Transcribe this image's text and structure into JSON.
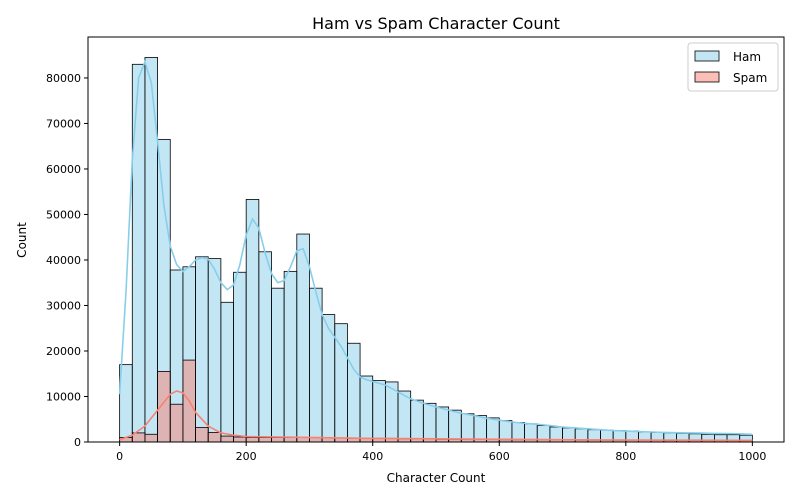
{
  "chart_data": {
    "type": "bar",
    "title": "Ham vs Spam Character Count",
    "xlabel": "Character Count",
    "ylabel": "Count",
    "xlim": [
      -50,
      1050
    ],
    "ylim": [
      0,
      89000
    ],
    "xticks": [
      0,
      200,
      400,
      600,
      800,
      1000
    ],
    "yticks": [
      0,
      10000,
      20000,
      30000,
      40000,
      50000,
      60000,
      70000,
      80000
    ],
    "bin_start": 0,
    "bin_width": 20,
    "grid": false,
    "legend_position": "top-right",
    "series": [
      {
        "name": "Ham",
        "color": "#87CEEB",
        "values": [
          17000,
          83000,
          84500,
          66500,
          37800,
          38500,
          40700,
          40300,
          30700,
          37300,
          53300,
          41800,
          33800,
          37500,
          45700,
          33800,
          28000,
          26000,
          21700,
          14500,
          13500,
          13200,
          11200,
          9200,
          8500,
          7700,
          7000,
          6200,
          5800,
          5300,
          4700,
          4300,
          4000,
          3600,
          3300,
          3100,
          2900,
          2700,
          2600,
          2500,
          2400,
          2200,
          2100,
          2000,
          1900,
          1800,
          1700,
          1600,
          1600,
          1500
        ],
        "kde": [
          [
            0,
            10500
          ],
          [
            10,
            33000
          ],
          [
            20,
            62000
          ],
          [
            30,
            80000
          ],
          [
            40,
            83500
          ],
          [
            50,
            79000
          ],
          [
            60,
            66000
          ],
          [
            70,
            52000
          ],
          [
            80,
            43000
          ],
          [
            90,
            39000
          ],
          [
            100,
            37500
          ],
          [
            110,
            38500
          ],
          [
            120,
            40000
          ],
          [
            130,
            40500
          ],
          [
            140,
            40200
          ],
          [
            150,
            38000
          ],
          [
            160,
            35000
          ],
          [
            170,
            33500
          ],
          [
            180,
            34500
          ],
          [
            190,
            39000
          ],
          [
            200,
            45500
          ],
          [
            210,
            49000
          ],
          [
            220,
            47000
          ],
          [
            230,
            41500
          ],
          [
            240,
            37000
          ],
          [
            250,
            35000
          ],
          [
            260,
            35500
          ],
          [
            270,
            38500
          ],
          [
            280,
            42000
          ],
          [
            290,
            42500
          ],
          [
            300,
            38500
          ],
          [
            310,
            33000
          ],
          [
            320,
            28000
          ],
          [
            330,
            25000
          ],
          [
            340,
            23000
          ],
          [
            350,
            21000
          ],
          [
            360,
            18500
          ],
          [
            370,
            16000
          ],
          [
            380,
            14300
          ],
          [
            390,
            13700
          ],
          [
            400,
            13300
          ],
          [
            420,
            12500
          ],
          [
            440,
            11000
          ],
          [
            460,
            9500
          ],
          [
            480,
            8500
          ],
          [
            500,
            7700
          ],
          [
            520,
            7000
          ],
          [
            540,
            6300
          ],
          [
            560,
            5800
          ],
          [
            580,
            5200
          ],
          [
            600,
            4800
          ],
          [
            620,
            4400
          ],
          [
            640,
            4100
          ],
          [
            660,
            3900
          ],
          [
            680,
            3600
          ],
          [
            700,
            3300
          ],
          [
            720,
            3100
          ],
          [
            740,
            2900
          ],
          [
            760,
            2700
          ],
          [
            780,
            2500
          ],
          [
            800,
            2400
          ],
          [
            820,
            2300
          ],
          [
            840,
            2200
          ],
          [
            860,
            2100
          ],
          [
            880,
            2050
          ],
          [
            900,
            2000
          ],
          [
            920,
            1950
          ],
          [
            940,
            1900
          ],
          [
            960,
            1850
          ],
          [
            980,
            1800
          ],
          [
            1000,
            1700
          ]
        ]
      },
      {
        "name": "Spam",
        "color": "#FA8072",
        "values": [
          1000,
          2000,
          1700,
          15500,
          8300,
          18000,
          3200,
          2100,
          1300,
          1100,
          1000,
          1000,
          1000,
          1000,
          1000,
          1000,
          900,
          900,
          800,
          800,
          800,
          800,
          700,
          700,
          700,
          600,
          600,
          600,
          600,
          600,
          500,
          500,
          500,
          500,
          500,
          500,
          400,
          400,
          400,
          400,
          400,
          400,
          400,
          300,
          300,
          300,
          300,
          300,
          300,
          300
        ],
        "kde": [
          [
            0,
            500
          ],
          [
            20,
            1500
          ],
          [
            40,
            3500
          ],
          [
            60,
            7000
          ],
          [
            80,
            10500
          ],
          [
            90,
            11200
          ],
          [
            100,
            10800
          ],
          [
            110,
            9000
          ],
          [
            120,
            6500
          ],
          [
            140,
            3500
          ],
          [
            160,
            2000
          ],
          [
            180,
            1500
          ],
          [
            200,
            1200
          ],
          [
            250,
            1100
          ],
          [
            300,
            1000
          ],
          [
            350,
            900
          ],
          [
            400,
            800
          ],
          [
            450,
            750
          ],
          [
            500,
            700
          ],
          [
            600,
            600
          ],
          [
            700,
            500
          ],
          [
            800,
            450
          ],
          [
            900,
            400
          ],
          [
            1000,
            350
          ]
        ]
      }
    ]
  }
}
